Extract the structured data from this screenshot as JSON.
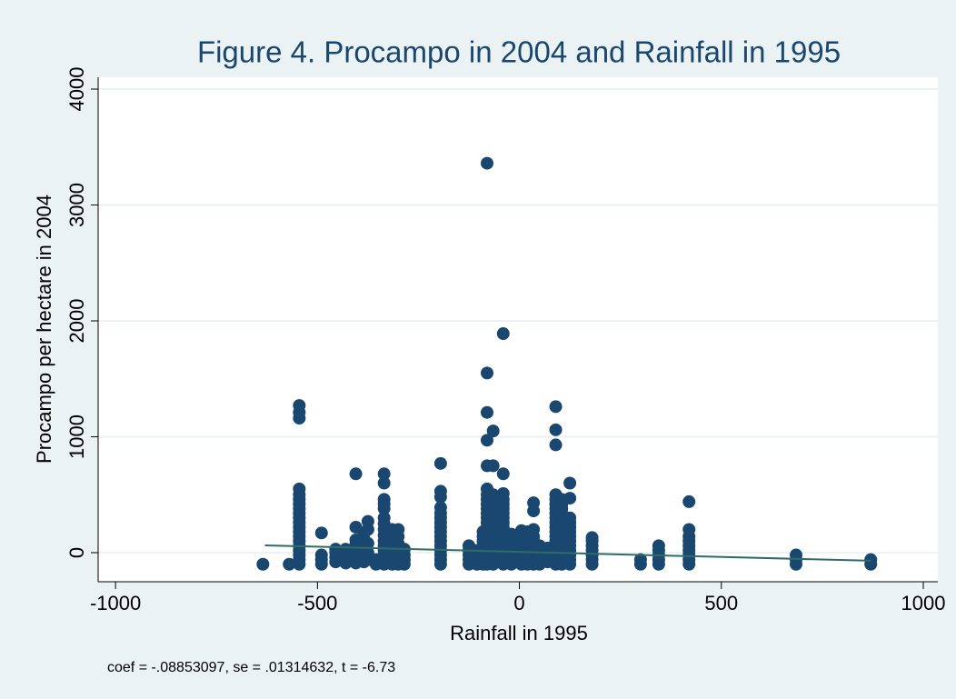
{
  "chart_data": {
    "type": "scatter",
    "title": "Figure 4. Procampo in 2004 and Rainfall in 1995",
    "x_label": "Rainfall in 1995",
    "y_label": "Procampo per hectare in 2004",
    "note": "coef = -.08853097, se = .01314632, t = -6.73",
    "xlim": [
      -1043,
      1036
    ],
    "xticks": [
      -1000,
      -500,
      0,
      500,
      1000
    ],
    "ylim": [
      -251,
      4102
    ],
    "yticks": [
      0,
      1000,
      2000,
      3000,
      4000
    ],
    "grid": true,
    "color": "#1a476f",
    "columns": [
      {
        "x": -635,
        "values": [
          -100
        ]
      },
      {
        "x": -570,
        "values": [
          -100
        ]
      },
      {
        "x": -545,
        "values": [
          -100,
          -60,
          -20,
          20,
          60,
          100,
          140,
          180,
          220,
          260,
          300,
          340,
          380,
          420,
          460,
          500,
          550,
          1160,
          1210,
          1270
        ]
      },
      {
        "x": -490,
        "values": [
          -100,
          -60,
          -20,
          170
        ]
      },
      {
        "x": -455,
        "values": [
          -80,
          -40,
          0,
          30
        ]
      },
      {
        "x": -430,
        "values": [
          -90,
          -50,
          -10,
          30
        ]
      },
      {
        "x": -405,
        "values": [
          -90,
          -50,
          -10,
          30,
          70,
          110,
          220,
          680
        ]
      },
      {
        "x": -385,
        "values": [
          -80,
          -40,
          0,
          60,
          120,
          170
        ]
      },
      {
        "x": -375,
        "values": [
          -60,
          0,
          80,
          200,
          270
        ]
      },
      {
        "x": -355,
        "values": [
          -100,
          -60
        ]
      },
      {
        "x": -335,
        "values": [
          -100,
          -60,
          -20,
          20,
          60,
          100,
          150,
          200,
          250,
          300,
          380,
          420,
          460,
          600,
          680
        ]
      },
      {
        "x": -315,
        "values": [
          -100,
          -60,
          -20,
          20,
          60,
          100,
          150,
          200
        ]
      },
      {
        "x": -300,
        "values": [
          -100,
          -60,
          -20,
          20,
          80,
          140,
          200
        ]
      },
      {
        "x": -285,
        "values": [
          -100,
          -60,
          -20,
          30
        ]
      },
      {
        "x": -195,
        "values": [
          -100,
          -60,
          -20,
          20,
          60,
          100,
          140,
          180,
          220,
          260,
          300,
          340,
          390,
          480,
          530,
          770
        ]
      },
      {
        "x": -125,
        "values": [
          -100,
          -60,
          -20,
          20,
          60
        ]
      },
      {
        "x": -105,
        "values": [
          -100,
          -60,
          -20,
          20
        ]
      },
      {
        "x": -90,
        "values": [
          -100,
          -60,
          -20,
          20,
          60,
          100,
          140,
          180
        ]
      },
      {
        "x": -80,
        "values": [
          -100,
          -60,
          -20,
          20,
          60,
          100,
          140,
          180,
          220,
          260,
          300,
          340,
          380,
          420,
          460,
          500,
          550,
          750,
          970,
          1210,
          1550,
          3360
        ]
      },
      {
        "x": -65,
        "values": [
          -100,
          -60,
          -20,
          20,
          60,
          100,
          140,
          180,
          220,
          260,
          300,
          340,
          380,
          420,
          460,
          500,
          750,
          1050
        ]
      },
      {
        "x": -40,
        "values": [
          -100,
          -60,
          -20,
          20,
          60,
          100,
          140,
          180,
          220,
          260,
          300,
          340,
          380,
          420,
          460,
          510,
          680,
          1890
        ]
      },
      {
        "x": -20,
        "values": [
          -100,
          -60,
          -20,
          20,
          60,
          100,
          160
        ]
      },
      {
        "x": 5,
        "values": [
          -100,
          -60,
          -20,
          20,
          60,
          100,
          140,
          190
        ]
      },
      {
        "x": 20,
        "values": [
          -100,
          -60,
          -20,
          20,
          60,
          100,
          140,
          180
        ]
      },
      {
        "x": 35,
        "values": [
          -100,
          -60,
          -20,
          20,
          60,
          100,
          140,
          200,
          360,
          430
        ]
      },
      {
        "x": 50,
        "values": [
          -100,
          -60,
          -20,
          20,
          60
        ]
      },
      {
        "x": 70,
        "values": [
          -80,
          -40,
          0,
          40
        ]
      },
      {
        "x": 90,
        "values": [
          -100,
          -60,
          -20,
          20,
          60,
          100,
          140,
          180,
          220,
          260,
          300,
          340,
          380,
          420,
          460,
          500,
          930,
          1060,
          1260
        ]
      },
      {
        "x": 105,
        "values": [
          -100,
          -60,
          -20,
          20,
          60,
          100,
          140,
          180,
          220,
          260,
          300,
          340,
          380,
          420,
          460
        ]
      },
      {
        "x": 125,
        "values": [
          -100,
          -60,
          -20,
          20,
          60,
          100,
          140,
          180,
          220,
          260,
          300,
          470,
          600
        ]
      },
      {
        "x": 180,
        "values": [
          -100,
          -60,
          -20,
          20,
          60,
          100,
          130
        ]
      },
      {
        "x": 300,
        "values": [
          -100,
          -60
        ]
      },
      {
        "x": 345,
        "values": [
          -100,
          -60,
          -20,
          20,
          60
        ]
      },
      {
        "x": 420,
        "values": [
          -100,
          -60,
          -20,
          20,
          60,
          100,
          140,
          200,
          440
        ]
      },
      {
        "x": 685,
        "values": [
          -100,
          -60,
          -20
        ]
      },
      {
        "x": 870,
        "values": [
          -100,
          -60
        ]
      }
    ],
    "fit": {
      "x": [
        -630,
        870
      ],
      "values": [
        63,
        -70
      ],
      "color": "#2d6d66"
    }
  }
}
